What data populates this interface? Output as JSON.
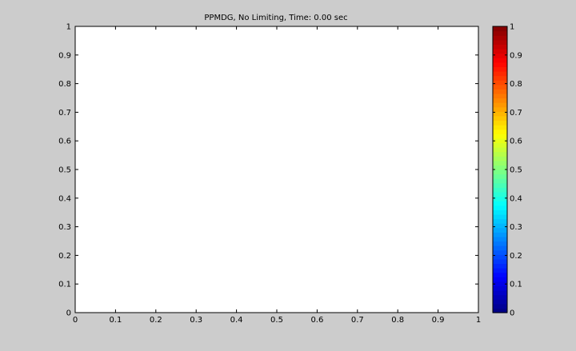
{
  "chart_data": {
    "type": "heatmap",
    "title": "PPMDG, No Limiting, Time: 0.00 sec",
    "xlabel": "",
    "ylabel": "",
    "xlim": [
      0,
      1
    ],
    "ylim": [
      0,
      1
    ],
    "x_ticks": [
      "0",
      "0.1",
      "0.2",
      "0.3",
      "0.4",
      "0.5",
      "0.6",
      "0.7",
      "0.8",
      "0.9",
      "1"
    ],
    "y_ticks": [
      "0",
      "0.1",
      "0.2",
      "0.3",
      "0.4",
      "0.5",
      "0.6",
      "0.7",
      "0.8",
      "0.9",
      "1"
    ],
    "grid": false,
    "plot_background": "#ffffff",
    "figure_background": "#cccccc",
    "colorbar": {
      "colormap": "jet",
      "range": [
        0,
        1
      ],
      "ticks": [
        "0",
        "0.1",
        "0.2",
        "0.3",
        "0.4",
        "0.5",
        "0.6",
        "0.7",
        "0.8",
        "0.9",
        "1"
      ],
      "levels": 64
    }
  }
}
